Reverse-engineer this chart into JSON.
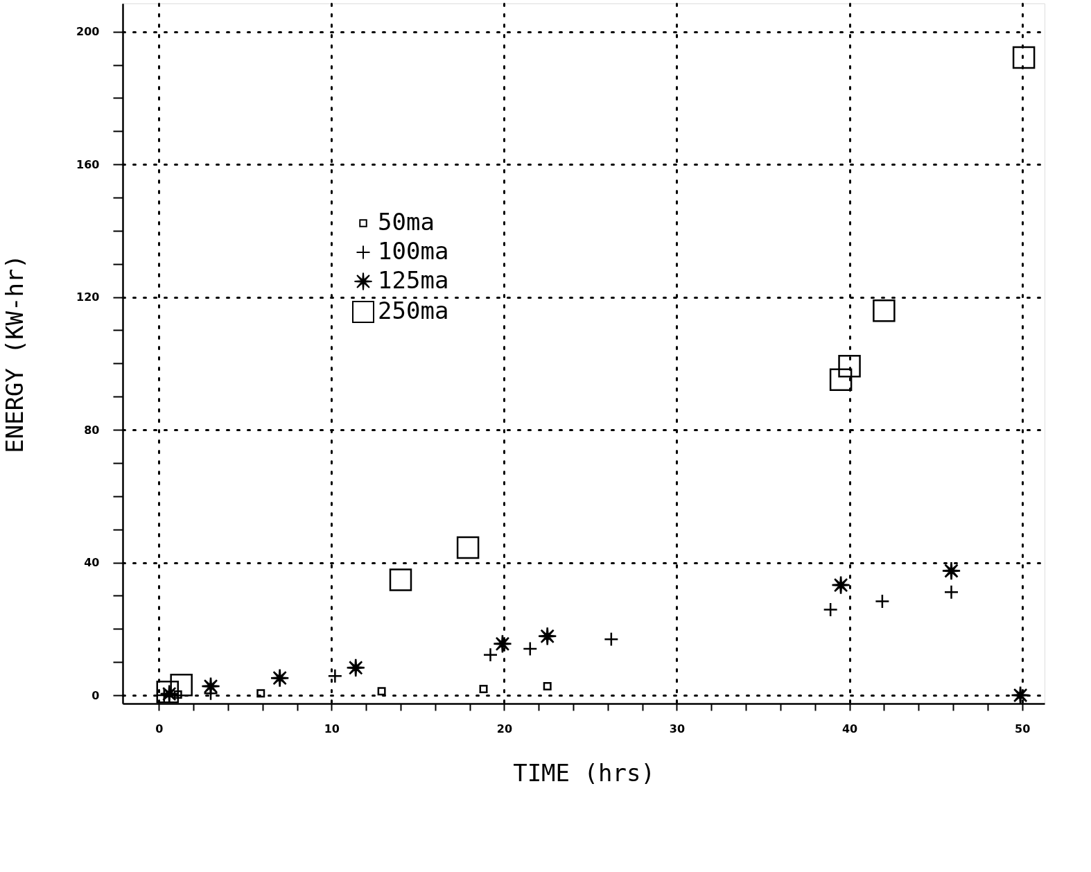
{
  "chart_data": {
    "type": "scatter",
    "xlabel": "TIME (hrs)",
    "ylabel": "ENERGY (KW-hr)",
    "xlim": [
      -2.1,
      51.3
    ],
    "ylim": [
      -2.5,
      208.5
    ],
    "xticks": [
      0,
      {
        "value": 2,
        "label": null
      },
      {
        "value": 4,
        "label": null
      },
      {
        "value": 6,
        "label": null
      },
      {
        "value": 8,
        "label": null
      },
      10,
      {
        "value": 12,
        "label": null
      },
      {
        "value": 14,
        "label": null
      },
      {
        "value": 16,
        "label": null
      },
      {
        "value": 18,
        "label": null
      },
      20,
      {
        "value": 22,
        "label": null
      },
      {
        "value": 24,
        "label": null
      },
      {
        "value": 26,
        "label": null
      },
      {
        "value": 28,
        "label": null
      },
      30,
      {
        "value": 32,
        "label": null
      },
      {
        "value": 34,
        "label": null
      },
      {
        "value": 36,
        "label": null
      },
      {
        "value": 38,
        "label": null
      },
      40,
      {
        "value": 42,
        "label": null
      },
      {
        "value": 44,
        "label": null
      },
      {
        "value": 46,
        "label": null
      },
      {
        "value": 48,
        "label": null
      },
      50
    ],
    "yticks": [
      0,
      {
        "value": 10,
        "label": null
      },
      {
        "value": 20,
        "label": null
      },
      {
        "value": 30,
        "label": null
      },
      40,
      {
        "value": 50,
        "label": null
      },
      {
        "value": 60,
        "label": null
      },
      {
        "value": 70,
        "label": null
      },
      80,
      {
        "value": 90,
        "label": null
      },
      {
        "value": 100,
        "label": null
      },
      {
        "value": 110,
        "label": null
      },
      120,
      {
        "value": 130,
        "label": null
      },
      {
        "value": 140,
        "label": null
      },
      {
        "value": 150,
        "label": null
      },
      160,
      {
        "value": 170,
        "label": null
      },
      {
        "value": 180,
        "label": null
      },
      {
        "value": 190,
        "label": null
      },
      200
    ],
    "grid": true,
    "legend": "top left",
    "series": [
      {
        "name": "50ma",
        "color": "#000000",
        "marker": "square",
        "x": [
          1.1,
          5.9,
          12.9,
          18.8,
          22.5
        ],
        "values": [
          0.2,
          0.6,
          1.2,
          1.9,
          2.7
        ]
      },
      {
        "name": "100ma",
        "color": "#000000",
        "marker": "cross",
        "x": [
          0.3,
          3.0,
          10.2,
          19.2,
          21.5,
          26.2,
          38.9,
          41.9,
          45.9
        ],
        "values": [
          0.0,
          0.6,
          5.8,
          12.2,
          14.0,
          16.9,
          25.8,
          28.3,
          31.1
        ]
      },
      {
        "name": "125ma",
        "color": "#000000",
        "marker": "star",
        "x": [
          0.6,
          3.0,
          7.0,
          11.4,
          19.9,
          22.5,
          39.5,
          45.9,
          49.9
        ],
        "values": [
          0.4,
          2.7,
          5.2,
          8.3,
          15.5,
          17.8,
          33.2,
          37.5,
          0.0
        ]
      },
      {
        "name": "250ma",
        "color": "#000000",
        "marker": "square",
        "x": [
          0.5,
          1.3,
          14.0,
          17.9,
          39.5,
          40.0,
          42.0,
          50.1
        ],
        "values": [
          1.0,
          3.1,
          34.8,
          44.5,
          95.1,
          99.2,
          115.9,
          192.2
        ]
      }
    ]
  }
}
